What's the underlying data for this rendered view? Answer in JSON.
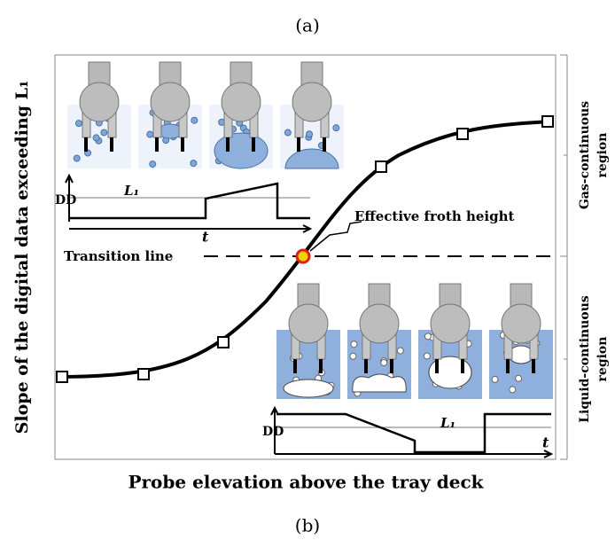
{
  "figure": {
    "label_top": "(a)",
    "label_bottom": "(b)"
  },
  "axes": {
    "y_label": "Slope of the digital data exceeding L₁",
    "x_label": "Probe elevation above the tray deck"
  },
  "regions": {
    "gas": [
      "Gas-continuous",
      "region"
    ],
    "liquid": [
      "Liquid-continuous",
      "region"
    ]
  },
  "annotations": {
    "froth": "Effective froth height",
    "transition": "Transition line"
  },
  "inset_gas": {
    "y_label": "DD",
    "level": "L₁",
    "x_label": "t"
  },
  "inset_liquid": {
    "y_label": "DD",
    "level": "L₁",
    "x_label": "t"
  }
}
